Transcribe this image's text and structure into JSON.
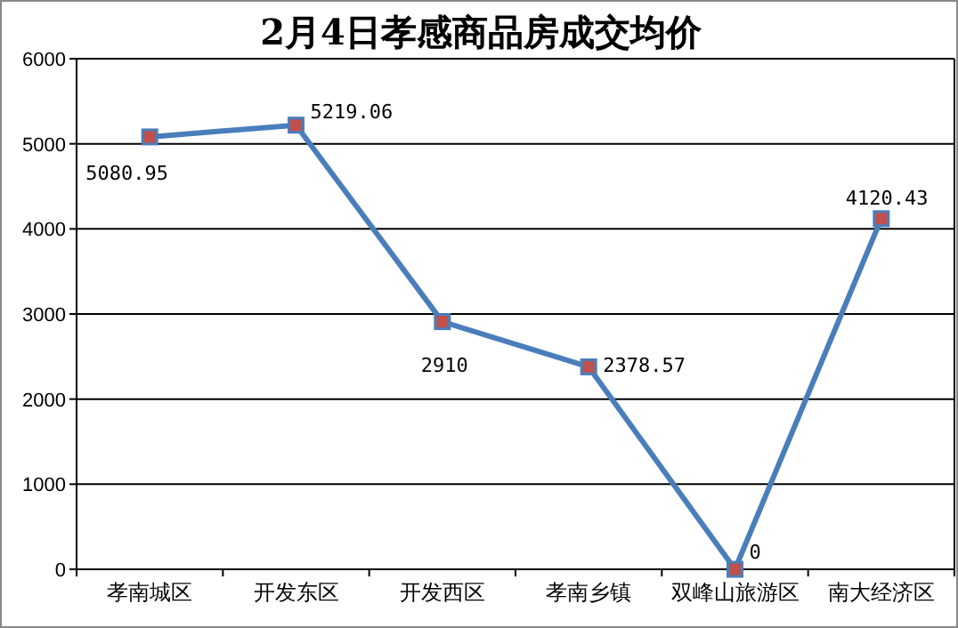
{
  "chart_data": {
    "type": "line",
    "title": "2月4日孝感商品房成交均价",
    "categories": [
      "孝南城区",
      "开发东区",
      "开发西区",
      "孝南乡镇",
      "双峰山旅游区",
      "南大经济区"
    ],
    "series": [
      {
        "color": "#4a7ebb",
        "values": [
          5080.95,
          5219.06,
          2910,
          2378.57,
          0,
          4120.43
        ]
      }
    ],
    "ylim": [
      0,
      6000
    ],
    "yticks": [
      0,
      1000,
      2000,
      3000,
      4000,
      5000,
      6000
    ],
    "grid": "y",
    "marker": "square",
    "line_style": "solid",
    "data_labels": true
  }
}
